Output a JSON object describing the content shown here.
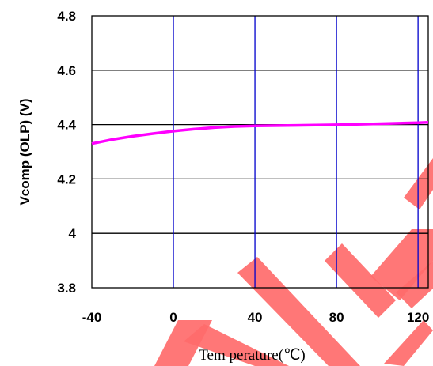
{
  "chart_data": {
    "type": "line",
    "xlabel": "Tem perature(℃)",
    "ylabel": "Vcomp (OLP) (V)",
    "xlim": [
      -40,
      125
    ],
    "ylim": [
      3.8,
      4.8
    ],
    "x_ticks": [
      -40,
      0,
      40,
      80,
      120
    ],
    "x_tick_labels": [
      "-40",
      "0",
      "40",
      "80",
      "120"
    ],
    "y_ticks": [
      3.8,
      4.0,
      4.2,
      4.4,
      4.6,
      4.8
    ],
    "y_tick_labels": [
      "3.8",
      "4",
      "4.2",
      "4.4",
      "4.6",
      "4.8"
    ],
    "grid": true,
    "series": [
      {
        "color": "#ff00ff",
        "x": [
          -40,
          -30,
          -20,
          -10,
          0,
          10,
          20,
          30,
          40,
          60,
          80,
          100,
          120,
          125
        ],
        "y": [
          4.33,
          4.345,
          4.357,
          4.367,
          4.376,
          4.383,
          4.389,
          4.393,
          4.395,
          4.397,
          4.399,
          4.403,
          4.407,
          4.408
        ]
      }
    ],
    "colors": {
      "vertical_grid": "#0000cc",
      "horizontal_grid": "#000000",
      "watermark": "#ff6b6b"
    }
  }
}
